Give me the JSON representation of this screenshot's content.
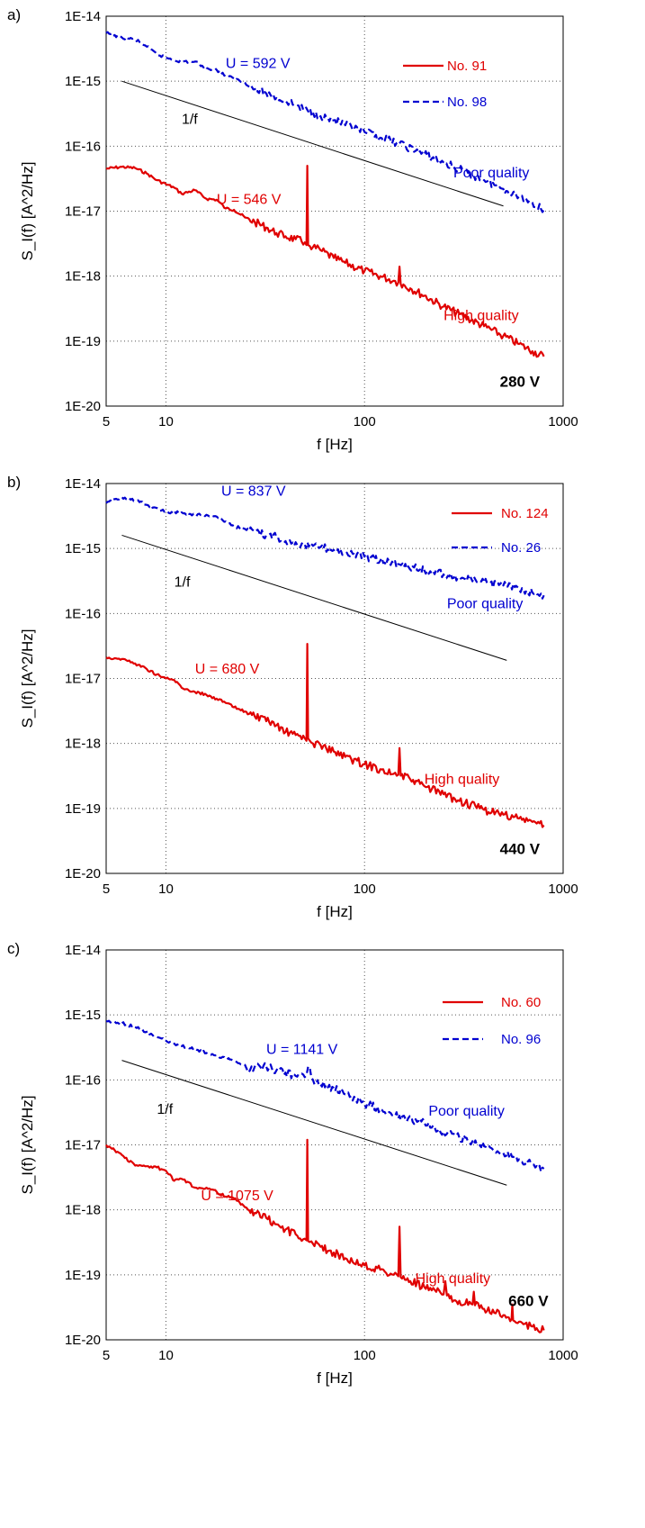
{
  "chart_data": [
    {
      "panel_label": "a)",
      "type": "line",
      "x_scale": "log",
      "y_scale": "log",
      "xlim": [
        5,
        1000
      ],
      "ylim": [
        1e-20,
        1e-14
      ],
      "xlabel": "f [Hz]",
      "ylabel": "S_I(f) [A^2/Hz]",
      "xticks": [
        {
          "value": 5,
          "label": "5"
        },
        {
          "value": 10,
          "label": "10"
        },
        {
          "value": 100,
          "label": "100"
        },
        {
          "value": 1000,
          "label": "1000"
        }
      ],
      "yticks": [
        {
          "value": 1e-14,
          "label": "1E-14"
        },
        {
          "value": 1e-15,
          "label": "1E-15"
        },
        {
          "value": 1e-16,
          "label": "1E-16"
        },
        {
          "value": 1e-17,
          "label": "1E-17"
        },
        {
          "value": 1e-18,
          "label": "1E-18"
        },
        {
          "value": 1e-19,
          "label": "1E-19"
        },
        {
          "value": 1e-20,
          "label": "1E-20"
        }
      ],
      "grid": true,
      "legend_position": "top-right",
      "series": [
        {
          "name": "No. 91",
          "color": "#e00000",
          "style": "solid",
          "x": [
            5,
            6,
            7,
            8,
            9,
            10,
            11,
            12,
            14,
            16,
            18,
            20,
            22,
            25,
            28,
            32,
            36,
            40,
            45,
            50,
            51,
            51.5,
            52,
            53,
            55,
            60,
            70,
            80,
            100,
            120,
            140,
            148,
            150,
            152,
            170,
            200,
            250,
            300,
            400,
            500,
            600,
            700,
            800
          ],
          "y": [
            4.5e-17,
            4.8e-17,
            4.6e-17,
            3.8e-17,
            3e-17,
            2.6e-17,
            2.3e-17,
            1.85e-17,
            2.1e-17,
            1.55e-17,
            1.5e-17,
            1.1e-17,
            1.05e-17,
            8e-18,
            6.8e-18,
            5.6e-18,
            4.6e-18,
            4.1e-18,
            3.7e-18,
            3.3e-18,
            3e-18,
            5e-17,
            3e-18,
            2.9e-18,
            2.8e-18,
            2.5e-18,
            1.9e-18,
            1.6e-18,
            1.2e-18,
            1e-18,
            8.5e-19,
            8e-19,
            1.4e-18,
            7.6e-19,
            6.5e-19,
            5e-19,
            3.4e-19,
            2.6e-19,
            1.7e-19,
            1.2e-19,
            9e-20,
            7e-20,
            5.8e-20
          ]
        },
        {
          "name": "No. 98",
          "color": "#0000d0",
          "style": "dashed",
          "x": [
            5,
            6,
            7,
            8,
            9,
            10,
            12,
            14,
            16,
            18,
            20,
            22,
            25,
            28,
            32,
            36,
            40,
            45,
            50,
            55,
            60,
            70,
            80,
            100,
            120,
            150,
            200,
            250,
            300,
            400,
            500,
            600,
            700,
            800
          ],
          "y": [
            5.5e-15,
            4.7e-15,
            4.4e-15,
            3.4e-15,
            2.6e-15,
            2.3e-15,
            2e-15,
            2e-15,
            1.6e-15,
            1.5e-15,
            1.2e-15,
            1.1e-15,
            9.5e-16,
            7.5e-16,
            6.5e-16,
            5.5e-16,
            5e-16,
            4.3e-16,
            3.6e-16,
            3.3e-16,
            2.9e-16,
            2.5e-16,
            2.1e-16,
            1.65e-16,
            1.35e-16,
            1.1e-16,
            7.5e-17,
            5.6e-17,
            4.4e-17,
            3e-17,
            2.2e-17,
            1.7e-17,
            1.35e-17,
            1.05e-17
          ]
        }
      ],
      "reference_line": {
        "label": "1/f",
        "x": [
          6,
          500
        ],
        "y": [
          1e-15,
          1.2e-17
        ]
      },
      "annotations": [
        {
          "text": "U = 592 V",
          "color": "#0000d0",
          "x": 20,
          "y": 1.6e-15
        },
        {
          "text": "1/f",
          "color": "#000000",
          "x": 12,
          "y": 2.2e-16
        },
        {
          "text": "Poor quality",
          "color": "#0000d0",
          "x": 280,
          "y": 3.3e-17
        },
        {
          "text": "U = 546 V",
          "color": "#e00000",
          "x": 18,
          "y": 1.3e-17
        },
        {
          "text": "High quality",
          "color": "#e00000",
          "x": 250,
          "y": 2.1e-19
        },
        {
          "text": "280 V",
          "color": "#000000",
          "bold": true,
          "x": 480,
          "y": 2e-20
        }
      ]
    },
    {
      "panel_label": "b)",
      "type": "line",
      "x_scale": "log",
      "y_scale": "log",
      "xlim": [
        5,
        1000
      ],
      "ylim": [
        1e-20,
        1e-14
      ],
      "xlabel": "f [Hz]",
      "ylabel": "S_I(f) [A^2/Hz]",
      "xticks": [
        {
          "value": 5,
          "label": "5"
        },
        {
          "value": 10,
          "label": "10"
        },
        {
          "value": 100,
          "label": "100"
        },
        {
          "value": 1000,
          "label": "1000"
        }
      ],
      "yticks": [
        {
          "value": 1e-14,
          "label": "1E-14"
        },
        {
          "value": 1e-15,
          "label": "1E-15"
        },
        {
          "value": 1e-16,
          "label": "1E-16"
        },
        {
          "value": 1e-17,
          "label": "1E-17"
        },
        {
          "value": 1e-18,
          "label": "1E-18"
        },
        {
          "value": 1e-19,
          "label": "1E-19"
        },
        {
          "value": 1e-20,
          "label": "1E-20"
        }
      ],
      "grid": true,
      "legend_position": "top-right",
      "series": [
        {
          "name": "No. 124",
          "color": "#e00000",
          "style": "solid",
          "x": [
            5,
            6,
            7,
            8,
            9,
            10,
            11,
            12,
            14,
            16,
            18,
            20,
            22,
            25,
            28,
            32,
            36,
            40,
            45,
            50,
            51,
            51.5,
            52,
            53,
            55,
            60,
            70,
            80,
            100,
            120,
            140,
            148,
            150,
            152,
            170,
            200,
            250,
            300,
            400,
            500,
            600,
            700,
            800
          ],
          "y": [
            2.1e-17,
            2e-17,
            1.7e-17,
            1.4e-17,
            1.15e-17,
            1e-17,
            9.5e-18,
            7.2e-18,
            6.2e-18,
            5.6e-18,
            4.9e-18,
            4.2e-18,
            3.6e-18,
            3.1e-18,
            2.6e-18,
            2.2e-18,
            1.9e-18,
            1.5e-18,
            1.35e-18,
            1.2e-18,
            1.1e-18,
            3.4e-17,
            1.2e-18,
            1.1e-18,
            1e-18,
            9.5e-19,
            7.5e-19,
            6.2e-19,
            4.8e-19,
            4e-19,
            3.4e-19,
            3.3e-19,
            8.5e-19,
            3.2e-19,
            2.8e-19,
            2.2e-19,
            1.65e-19,
            1.3e-19,
            9.5e-20,
            8e-20,
            7e-20,
            6.2e-20,
            5.5e-20
          ]
        },
        {
          "name": "No. 26",
          "color": "#0000d0",
          "style": "dashed",
          "x": [
            5,
            6,
            7,
            8,
            9,
            10,
            12,
            14,
            16,
            18,
            20,
            22,
            25,
            28,
            32,
            36,
            40,
            45,
            50,
            55,
            60,
            70,
            80,
            100,
            120,
            150,
            200,
            250,
            300,
            400,
            500,
            600,
            700,
            800
          ],
          "y": [
            5e-15,
            6.2e-15,
            5.5e-15,
            4.7e-15,
            4.2e-15,
            3.6e-15,
            3.6e-15,
            3.3e-15,
            3.3e-15,
            3.1e-15,
            2.6e-15,
            2.2e-15,
            2e-15,
            1.8e-15,
            1.6e-15,
            1.5e-15,
            1.3e-15,
            1.25e-15,
            1.15e-15,
            1.1e-15,
            1.05e-15,
            9.5e-16,
            8.5e-16,
            7.5e-16,
            6.5e-16,
            5.7e-16,
            4.6e-16,
            4e-16,
            3.6e-16,
            3e-16,
            2.7e-16,
            2.4e-16,
            2.1e-16,
            1.9e-16
          ]
        }
      ],
      "reference_line": {
        "label": "1/f",
        "x": [
          6,
          520
        ],
        "y": [
          1.6e-15,
          1.9e-17
        ]
      },
      "annotations": [
        {
          "text": "U = 837 V",
          "color": "#0000d0",
          "x": 19,
          "y": 6.5e-15
        },
        {
          "text": "1/f",
          "color": "#000000",
          "x": 11,
          "y": 2.6e-16
        },
        {
          "text": "Poor quality",
          "color": "#0000d0",
          "x": 260,
          "y": 1.2e-16
        },
        {
          "text": "U = 680 V",
          "color": "#e00000",
          "x": 14,
          "y": 1.2e-17
        },
        {
          "text": "High quality",
          "color": "#e00000",
          "x": 200,
          "y": 2.4e-19
        },
        {
          "text": "440 V",
          "color": "#000000",
          "bold": true,
          "x": 480,
          "y": 2e-20
        }
      ]
    },
    {
      "panel_label": "c)",
      "type": "line",
      "x_scale": "log",
      "y_scale": "log",
      "xlim": [
        5,
        1000
      ],
      "ylim": [
        1e-20,
        1e-14
      ],
      "xlabel": "f [Hz]",
      "ylabel": "S_I(f) [A^2/Hz]",
      "xticks": [
        {
          "value": 5,
          "label": "5"
        },
        {
          "value": 10,
          "label": "10"
        },
        {
          "value": 100,
          "label": "100"
        },
        {
          "value": 1000,
          "label": "1000"
        }
      ],
      "yticks": [
        {
          "value": 1e-14,
          "label": "1E-14"
        },
        {
          "value": 1e-15,
          "label": "1E-15"
        },
        {
          "value": 1e-16,
          "label": "1E-16"
        },
        {
          "value": 1e-17,
          "label": "1E-17"
        },
        {
          "value": 1e-18,
          "label": "1E-18"
        },
        {
          "value": 1e-19,
          "label": "1E-19"
        },
        {
          "value": 1e-20,
          "label": "1E-20"
        }
      ],
      "grid": true,
      "legend_position": "top-right",
      "series": [
        {
          "name": "No. 60",
          "color": "#e00000",
          "style": "solid",
          "x": [
            5,
            6,
            7,
            8,
            9,
            10,
            11,
            12,
            14,
            16,
            18,
            20,
            22,
            25,
            28,
            32,
            36,
            40,
            45,
            50,
            51,
            51.5,
            52,
            53,
            55,
            60,
            70,
            80,
            100,
            120,
            140,
            148,
            150,
            152,
            170,
            200,
            250,
            255,
            260,
            300,
            350,
            355,
            360,
            400,
            450,
            500,
            550,
            555,
            560,
            600,
            700,
            800
          ],
          "y": [
            1e-17,
            7e-18,
            4.8e-18,
            4.7e-18,
            4.5e-18,
            4e-18,
            2.8e-18,
            3e-18,
            2.2e-18,
            2.2e-18,
            1.9e-18,
            1.6e-18,
            1.5e-18,
            1.1e-18,
            9e-19,
            7.5e-19,
            6e-19,
            5e-19,
            4.2e-19,
            3.6e-19,
            3.4e-19,
            1.2e-17,
            3.3e-19,
            3.2e-19,
            3e-19,
            2.7e-19,
            2.2e-19,
            1.8e-19,
            1.4e-19,
            1.2e-19,
            1e-19,
            9.5e-20,
            5.5e-19,
            9.2e-20,
            8e-20,
            6.5e-20,
            5e-20,
            8e-20,
            4.8e-20,
            4e-20,
            3.5e-20,
            5.5e-20,
            3.4e-20,
            3e-20,
            2.6e-20,
            2.4e-20,
            2.1e-20,
            3.5e-20,
            2e-20,
            1.9e-20,
            1.6e-20,
            1.4e-20
          ]
        },
        {
          "name": "No. 96",
          "color": "#0000d0",
          "style": "dashed",
          "x": [
            5,
            6,
            7,
            8,
            9,
            10,
            12,
            14,
            16,
            18,
            20,
            22,
            25,
            26,
            28,
            32,
            36,
            40,
            45,
            50,
            52,
            55,
            60,
            70,
            80,
            100,
            120,
            150,
            200,
            250,
            300,
            400,
            500,
            600,
            700,
            800
          ],
          "y": [
            8e-16,
            7.5e-16,
            6.5e-16,
            5.5e-16,
            4.6e-16,
            4e-16,
            3.3e-16,
            3e-16,
            2.6e-16,
            2.4e-16,
            2.1e-16,
            2e-16,
            1.7e-16,
            1.3e-16,
            1.6e-16,
            1.6e-16,
            1.4e-16,
            1.3e-16,
            1.15e-16,
            1.1e-16,
            1.6e-16,
            1e-16,
            8.5e-17,
            7.5e-17,
            6e-17,
            4.3e-17,
            3.6e-17,
            2.8e-17,
            2.2e-17,
            1.6e-17,
            1.3e-17,
            9.5e-18,
            7.5e-18,
            6e-18,
            5e-18,
            4.3e-18
          ]
        }
      ],
      "reference_line": {
        "label": "1/f",
        "x": [
          6,
          520
        ],
        "y": [
          2e-16,
          2.4e-18
        ]
      },
      "annotations": [
        {
          "text": "U = 1141 V",
          "color": "#0000d0",
          "x": 32,
          "y": 2.5e-16
        },
        {
          "text": "1/f",
          "color": "#000000",
          "x": 9,
          "y": 3e-17
        },
        {
          "text": "Poor quality",
          "color": "#0000d0",
          "x": 210,
          "y": 2.8e-17
        },
        {
          "text": "U = 1075 V",
          "color": "#e00000",
          "x": 15,
          "y": 1.4e-18
        },
        {
          "text": "High quality",
          "color": "#e00000",
          "x": 180,
          "y": 7.5e-20
        },
        {
          "text": "660 V",
          "color": "#000000",
          "bold": true,
          "x": 530,
          "y": 3.3e-20
        }
      ]
    }
  ]
}
